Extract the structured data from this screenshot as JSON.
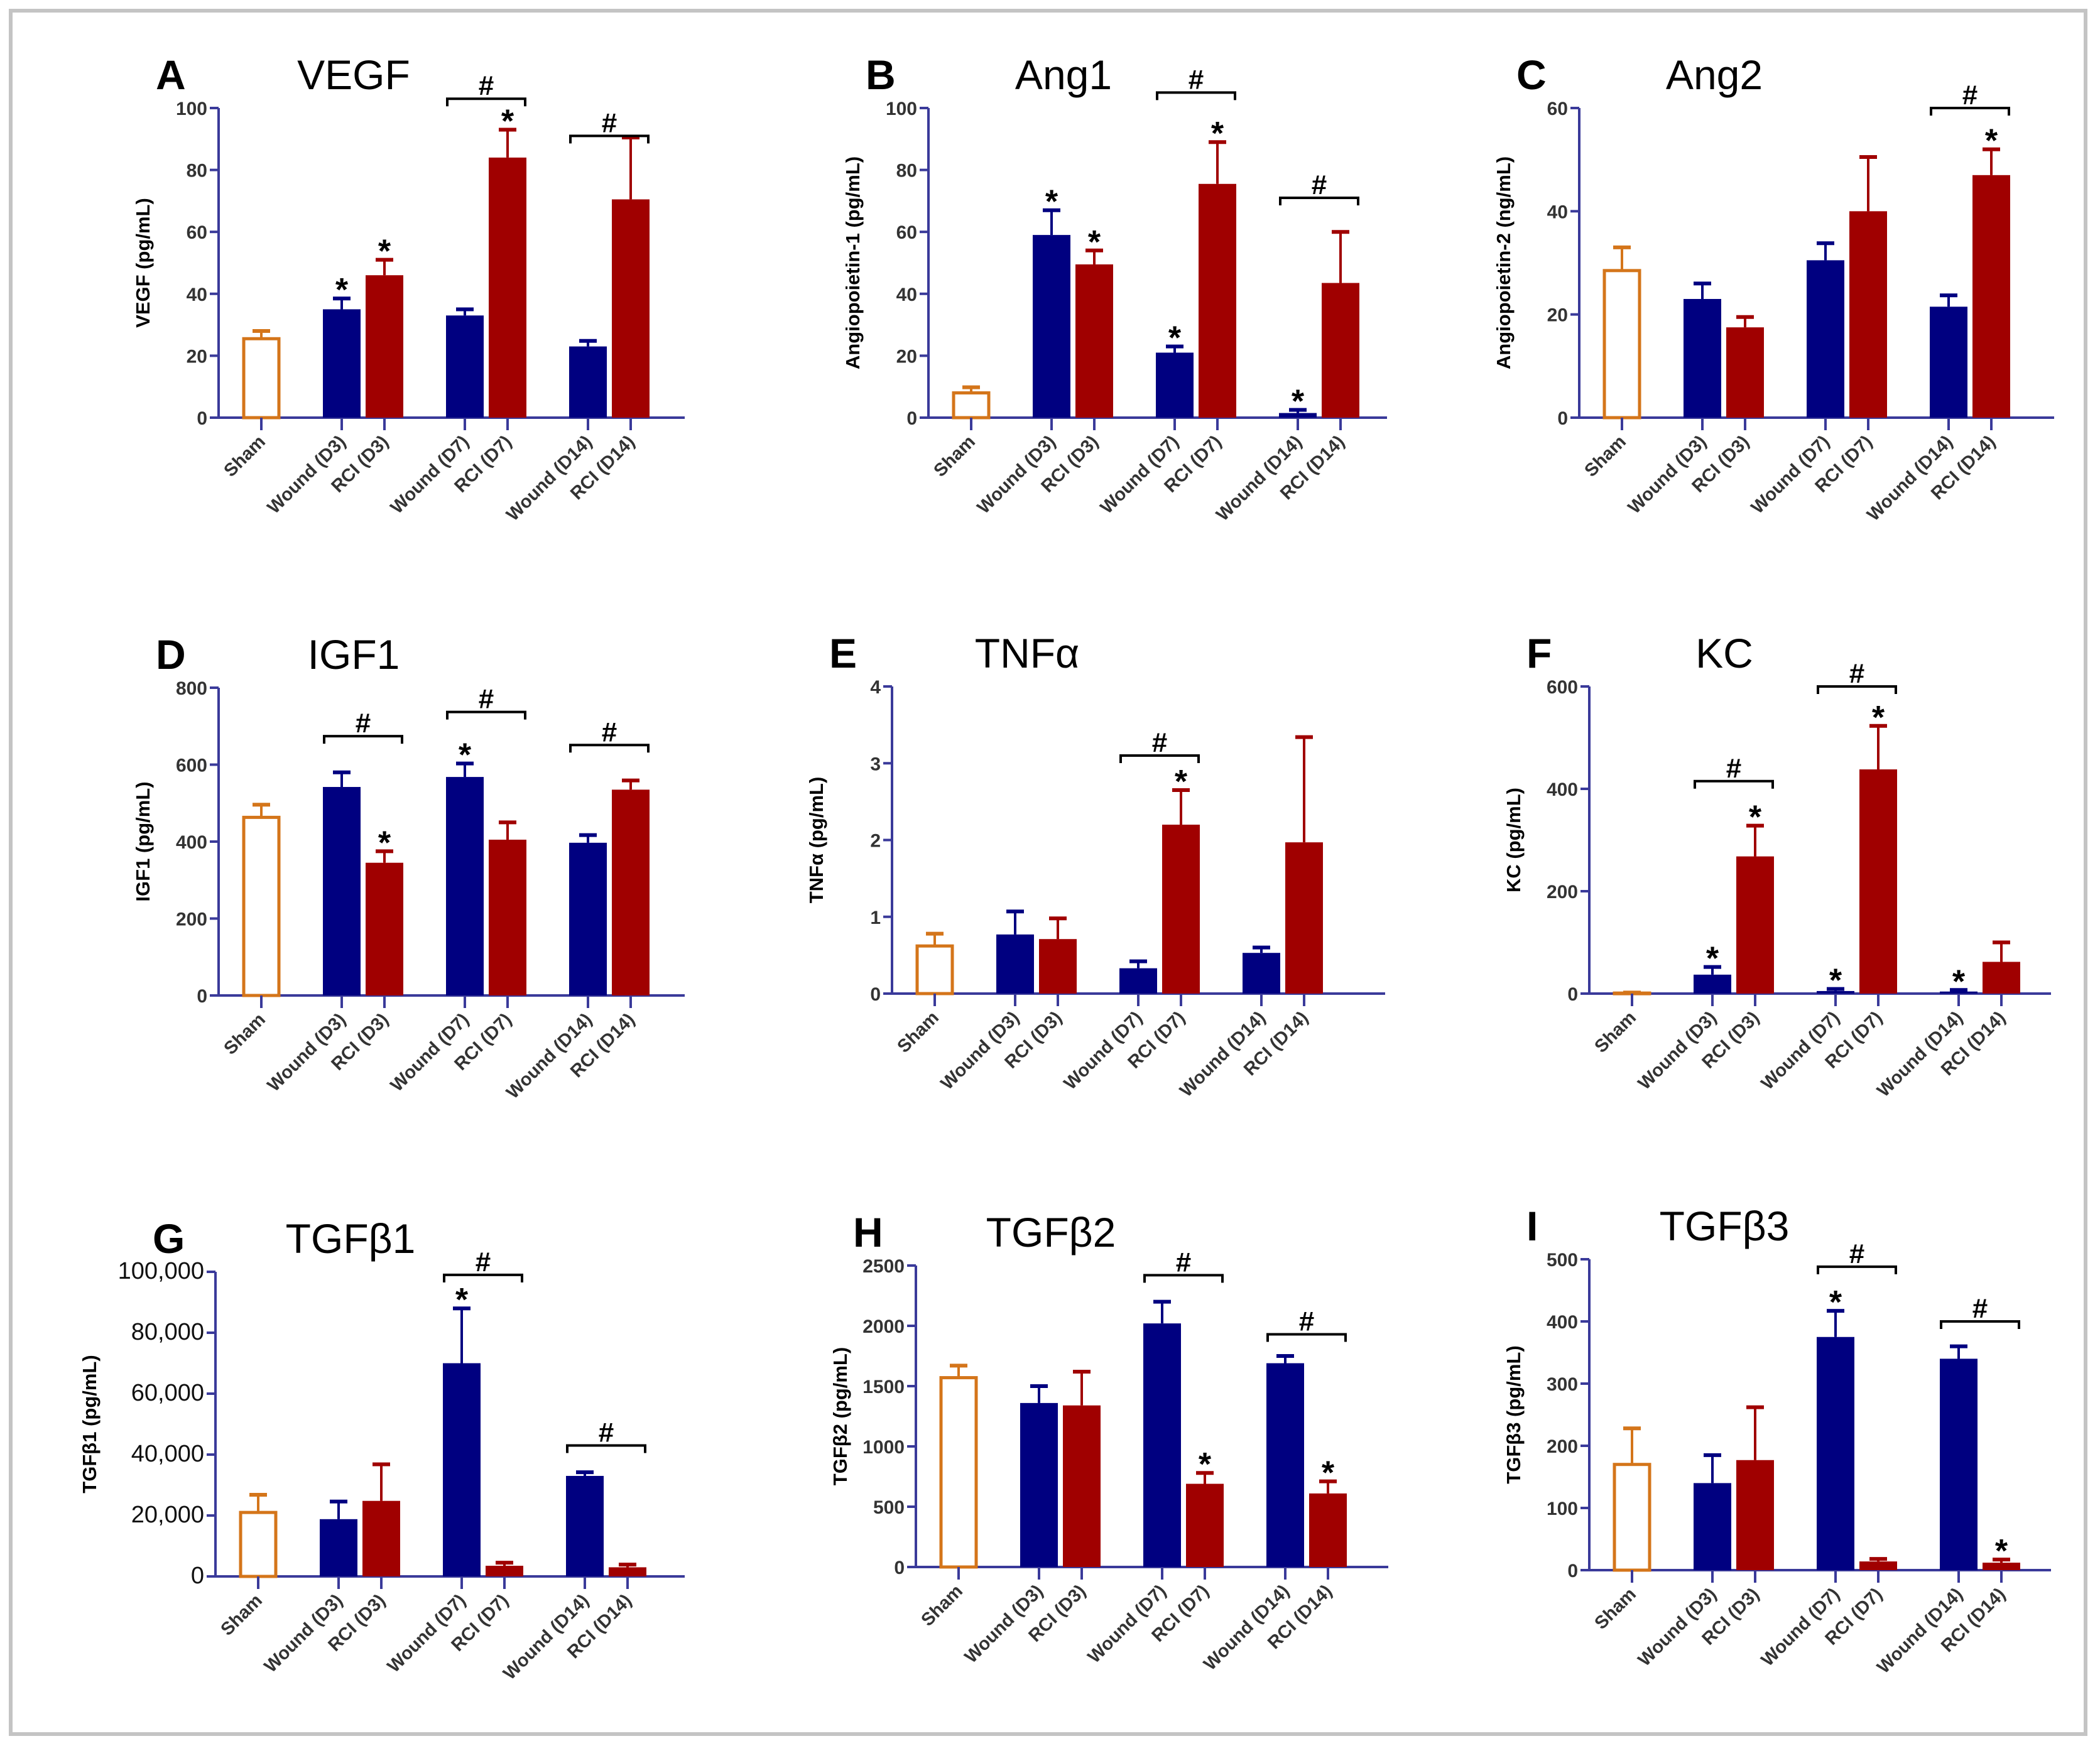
{
  "colors": {
    "sham": "#d4751a",
    "wound": "#000080",
    "rci": "#a00000",
    "axis": "#3a3a9a",
    "bracket": "#000000",
    "frame": "#c4c4c4"
  },
  "categories": [
    "Sham",
    "Wound (D3)",
    "RCI (D3)",
    "Wound (D7)",
    "RCI (D7)",
    "Wound (D14)",
    "RCI (D14)"
  ],
  "chart_data": [
    {
      "type": "bar",
      "panel": "A",
      "title": "VEGF",
      "ylabel": "VEGF (pg/mL)",
      "xlabel": "",
      "ylim": [
        0,
        100
      ],
      "yticks": [
        "0",
        "20",
        "40",
        "60",
        "80",
        "100"
      ],
      "categories": [
        "Sham",
        "Wound (D3)",
        "RCI (D3)",
        "Wound (D7)",
        "RCI (D7)",
        "Wound (D14)",
        "RCI (D14)"
      ],
      "values": [
        25.5,
        35,
        46,
        33,
        84,
        23,
        70.5
      ],
      "errors": [
        2.5,
        3.5,
        5,
        2,
        9,
        1.8,
        20
      ],
      "stars": [
        false,
        true,
        true,
        false,
        true,
        false,
        false
      ],
      "brackets": [
        {
          "from": 3,
          "to": 4,
          "label": "#",
          "level": 103
        },
        {
          "from": 5,
          "to": 6,
          "label": "#",
          "level": 91
        }
      ]
    },
    {
      "type": "bar",
      "panel": "B",
      "title": "Ang1",
      "ylabel": "Angiopoietin-1 (pg/mL)",
      "xlabel": "",
      "ylim": [
        0,
        100
      ],
      "yticks": [
        "0",
        "20",
        "40",
        "60",
        "80",
        "100"
      ],
      "categories": [
        "Sham",
        "Wound (D3)",
        "RCI (D3)",
        "Wound (D7)",
        "RCI (D7)",
        "Wound (D14)",
        "RCI (D14)"
      ],
      "values": [
        8,
        59,
        49.5,
        21,
        75.5,
        1.5,
        43.5
      ],
      "errors": [
        1.8,
        8,
        4.5,
        2,
        13.5,
        1,
        16.5
      ],
      "stars": [
        false,
        true,
        true,
        true,
        true,
        true,
        false
      ],
      "brackets": [
        {
          "from": 3,
          "to": 4,
          "label": "#",
          "level": 105
        },
        {
          "from": 5,
          "to": 6,
          "label": "#",
          "level": 71
        }
      ]
    },
    {
      "type": "bar",
      "panel": "C",
      "title": "Ang2",
      "ylabel": "Angiopoietin-2 (ng/mL)",
      "xlabel": "",
      "ylim": [
        0,
        60
      ],
      "yticks": [
        "0",
        "20",
        "40",
        "60"
      ],
      "categories": [
        "Sham",
        "Wound (D3)",
        "RCI (D3)",
        "Wound (D7)",
        "RCI (D7)",
        "Wound (D14)",
        "RCI (D14)"
      ],
      "values": [
        28.5,
        23,
        17.5,
        30.5,
        40,
        21.5,
        47
      ],
      "errors": [
        4.5,
        3,
        2,
        3.3,
        10.5,
        2.2,
        5
      ],
      "stars": [
        false,
        false,
        false,
        false,
        false,
        false,
        true
      ],
      "brackets": [
        {
          "from": 5,
          "to": 6,
          "label": "#",
          "level": 60
        }
      ]
    },
    {
      "type": "bar",
      "panel": "D",
      "title": "IGF1",
      "ylabel": "IGF1 (pg/mL)",
      "xlabel": "",
      "ylim": [
        0,
        800
      ],
      "yticks": [
        "0",
        "200",
        "400",
        "600",
        "800"
      ],
      "categories": [
        "Sham",
        "Wound (D3)",
        "RCI (D3)",
        "Wound (D7)",
        "RCI (D7)",
        "Wound (D14)",
        "RCI (D14)"
      ],
      "values": [
        463,
        542,
        345,
        568,
        405,
        397,
        535
      ],
      "errors": [
        33,
        38,
        30,
        35,
        45,
        20,
        24
      ],
      "stars": [
        false,
        false,
        true,
        true,
        false,
        false,
        false
      ],
      "brackets": [
        {
          "from": 1,
          "to": 2,
          "label": "#",
          "level": 674
        },
        {
          "from": 3,
          "to": 4,
          "label": "#",
          "level": 737
        },
        {
          "from": 5,
          "to": 6,
          "label": "#",
          "level": 651
        }
      ]
    },
    {
      "type": "bar",
      "panel": "E",
      "title": "TNFα",
      "ylabel": "TNFα (pg/mL)",
      "xlabel": "",
      "ylim": [
        0,
        4
      ],
      "yticks": [
        "0",
        "1",
        "2",
        "3",
        "4"
      ],
      "categories": [
        "Sham",
        "Wound (D3)",
        "RCI (D3)",
        "Wound (D7)",
        "RCI (D7)",
        "Wound (D14)",
        "RCI (D14)"
      ],
      "values": [
        0.62,
        0.77,
        0.71,
        0.33,
        2.2,
        0.53,
        1.97
      ],
      "errors": [
        0.16,
        0.3,
        0.27,
        0.09,
        0.45,
        0.07,
        1.37
      ],
      "stars": [
        false,
        false,
        false,
        false,
        true,
        false,
        false
      ],
      "brackets": [
        {
          "from": 3,
          "to": 4,
          "label": "#",
          "level": 3.1
        }
      ]
    },
    {
      "type": "bar",
      "panel": "F",
      "title": "KC",
      "ylabel": "KC (pg/mL)",
      "xlabel": "",
      "ylim": [
        0,
        600
      ],
      "yticks": [
        "0",
        "200",
        "400",
        "600"
      ],
      "categories": [
        "Sham",
        "Wound (D3)",
        "RCI (D3)",
        "Wound (D7)",
        "RCI (D7)",
        "Wound (D14)",
        "RCI (D14)"
      ],
      "values": [
        1,
        37,
        268,
        5,
        438,
        4,
        62
      ],
      "errors": [
        1,
        15,
        60,
        4,
        85,
        3,
        38
      ],
      "stars": [
        false,
        true,
        true,
        true,
        true,
        true,
        false
      ],
      "brackets": [
        {
          "from": 1,
          "to": 2,
          "label": "#",
          "level": 415
        },
        {
          "from": 3,
          "to": 4,
          "label": "#",
          "level": 600
        }
      ]
    },
    {
      "type": "bar",
      "panel": "G",
      "title": "TGFβ1",
      "ylabel": "TGFβ1 (pg/mL)",
      "xlabel": "",
      "ylim": [
        0,
        100000
      ],
      "yticks": [
        "0",
        "20,000",
        "40,000",
        "60,000",
        "80,000",
        "100,000"
      ],
      "categories": [
        "Sham",
        "Wound (D3)",
        "RCI (D3)",
        "Wound (D7)",
        "RCI (D7)",
        "Wound (D14)",
        "RCI (D14)"
      ],
      "values": [
        21000,
        18800,
        24800,
        70000,
        3500,
        33000,
        3000
      ],
      "errors": [
        5800,
        5800,
        12000,
        18000,
        1000,
        1200,
        900
      ],
      "stars": [
        false,
        false,
        false,
        true,
        false,
        false,
        false
      ],
      "brackets": [
        {
          "from": 3,
          "to": 4,
          "label": "#",
          "level": 99000
        },
        {
          "from": 5,
          "to": 6,
          "label": "#",
          "level": 43000
        }
      ]
    },
    {
      "type": "bar",
      "panel": "H",
      "title": "TGFβ2",
      "ylabel": "TGFβ2 (pg/mL)",
      "xlabel": "",
      "ylim": [
        0,
        2500
      ],
      "yticks": [
        "0",
        "500",
        "1000",
        "1500",
        "2000",
        "2500"
      ],
      "categories": [
        "Sham",
        "Wound (D3)",
        "RCI (D3)",
        "Wound (D7)",
        "RCI (D7)",
        "Wound (D14)",
        "RCI (D14)"
      ],
      "values": [
        1570,
        1360,
        1340,
        2020,
        690,
        1690,
        610
      ],
      "errors": [
        100,
        140,
        280,
        180,
        90,
        60,
        100
      ],
      "stars": [
        false,
        false,
        false,
        false,
        true,
        false,
        true
      ],
      "brackets": [
        {
          "from": 3,
          "to": 4,
          "label": "#",
          "level": 2420
        },
        {
          "from": 5,
          "to": 6,
          "label": "#",
          "level": 1930
        }
      ]
    },
    {
      "type": "bar",
      "panel": "I",
      "title": "TGFβ3",
      "ylabel": "TGFβ3 (pg/mL)",
      "xlabel": "",
      "ylim": [
        0,
        500
      ],
      "yticks": [
        "0",
        "100",
        "200",
        "300",
        "400",
        "500"
      ],
      "categories": [
        "Sham",
        "Wound (D3)",
        "RCI (D3)",
        "Wound (D7)",
        "RCI (D7)",
        "Wound (D14)",
        "RCI (D14)"
      ],
      "values": [
        170,
        140,
        177,
        375,
        14,
        340,
        12
      ],
      "errors": [
        58,
        45,
        85,
        42,
        4,
        20,
        5
      ],
      "stars": [
        false,
        false,
        false,
        true,
        false,
        false,
        true
      ],
      "brackets": [
        {
          "from": 3,
          "to": 4,
          "label": "#",
          "level": 488
        },
        {
          "from": 5,
          "to": 6,
          "label": "#",
          "level": 400
        }
      ]
    }
  ]
}
